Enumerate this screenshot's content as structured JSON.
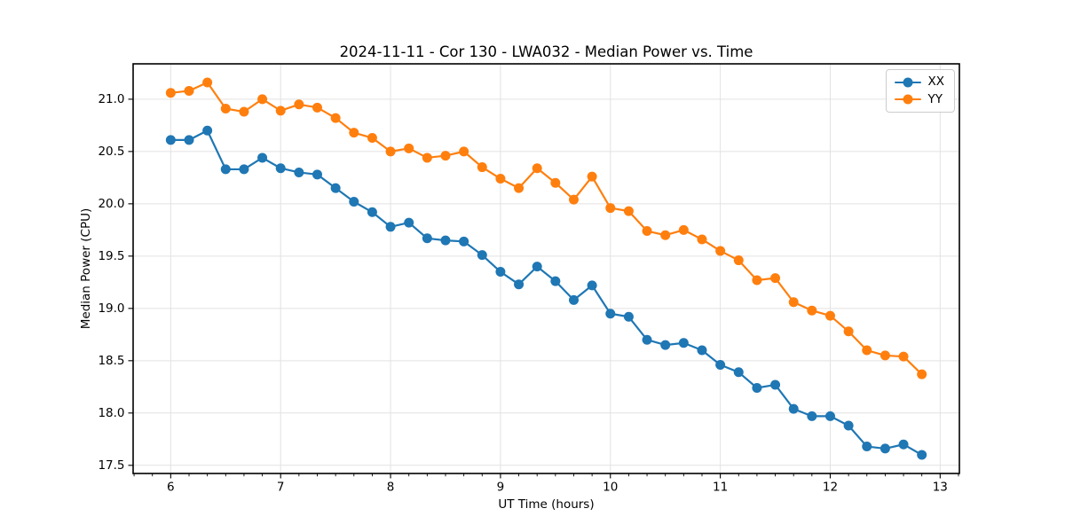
{
  "chart_data": {
    "type": "line",
    "title": "2024-11-11 - Cor 130 - LWA032 - Median Power vs. Time",
    "xlabel": "UT Time (hours)",
    "ylabel": "Median Power (CPU)",
    "xlim": [
      5.658,
      13.175
    ],
    "ylim": [
      17.422,
      21.338
    ],
    "x_major_ticks": [
      6,
      7,
      8,
      9,
      10,
      11,
      12,
      13
    ],
    "x_tick_labels": [
      "6",
      "7",
      "8",
      "9",
      "10",
      "11",
      "12",
      "13"
    ],
    "x_minor_step": 0.166667,
    "y_major_ticks": [
      17.5,
      18.0,
      18.5,
      19.0,
      19.5,
      20.0,
      20.5,
      21.0
    ],
    "y_tick_labels": [
      "17.5",
      "18.0",
      "18.5",
      "19.0",
      "19.5",
      "20.0",
      "20.5",
      "21.0"
    ],
    "grid": true,
    "grid_color": "#e2e2e2",
    "spine_color": "#000000",
    "legend_position": "upper right",
    "x": [
      6.0,
      6.1667,
      6.3333,
      6.5,
      6.6667,
      6.8333,
      7.0,
      7.1667,
      7.3333,
      7.5,
      7.6667,
      7.8333,
      8.0,
      8.1667,
      8.3333,
      8.5,
      8.6667,
      8.8333,
      9.0,
      9.1667,
      9.3333,
      9.5,
      9.6667,
      9.8333,
      10.0,
      10.1667,
      10.3333,
      10.5,
      10.6667,
      10.8333,
      11.0,
      11.1667,
      11.3333,
      11.5,
      11.6667,
      11.8333,
      12.0,
      12.1667,
      12.3333,
      12.5,
      12.6667,
      12.8333
    ],
    "series": [
      {
        "name": "XX",
        "color": "#1f77b4",
        "values": [
          20.61,
          20.61,
          20.7,
          20.33,
          20.33,
          20.44,
          20.34,
          20.3,
          20.28,
          20.15,
          20.02,
          19.92,
          19.78,
          19.82,
          19.67,
          19.65,
          19.64,
          19.51,
          19.35,
          19.23,
          19.4,
          19.26,
          19.08,
          19.22,
          18.95,
          18.92,
          18.7,
          18.65,
          18.67,
          18.6,
          18.46,
          18.39,
          18.24,
          18.27,
          18.04,
          17.97,
          17.97,
          17.88,
          17.68,
          17.66,
          17.7,
          17.6
        ]
      },
      {
        "name": "YY",
        "color": "#ff7f0e",
        "values": [
          21.06,
          21.08,
          21.16,
          20.91,
          20.88,
          21.0,
          20.89,
          20.95,
          20.92,
          20.82,
          20.68,
          20.63,
          20.5,
          20.53,
          20.44,
          20.46,
          20.5,
          20.35,
          20.24,
          20.15,
          20.34,
          20.2,
          20.04,
          20.26,
          19.96,
          19.93,
          19.74,
          19.7,
          19.75,
          19.66,
          19.55,
          19.46,
          19.27,
          19.29,
          19.06,
          18.98,
          18.93,
          18.78,
          18.6,
          18.55,
          18.54,
          18.37
        ]
      }
    ]
  }
}
